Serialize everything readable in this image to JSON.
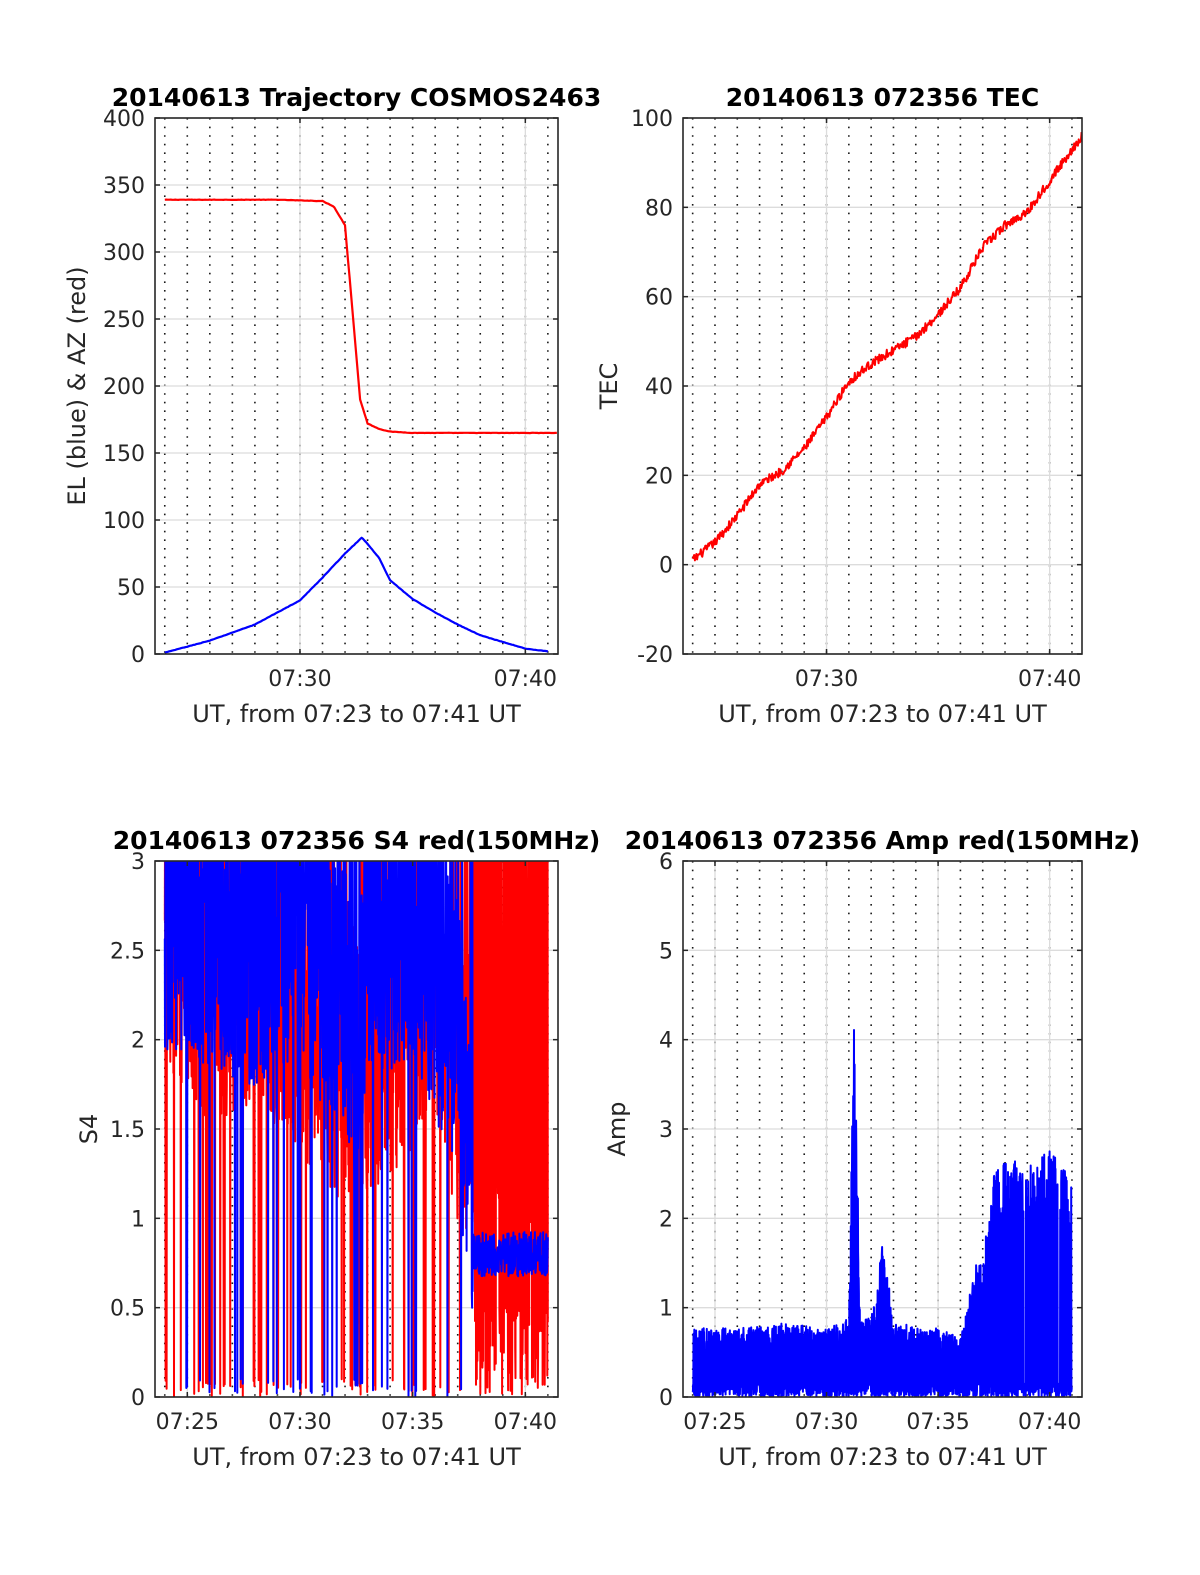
{
  "chart_data": [
    {
      "type": "line",
      "title": "20140613 Trajectory COSMOS2463",
      "xlabel": "UT, from 07:23 to 07:41 UT",
      "ylabel": "EL (blue) & AZ (red)",
      "xlim": [
        "07:23:34",
        "07:41:27"
      ],
      "ylim": [
        0,
        400
      ],
      "yticks": [
        0,
        50,
        100,
        150,
        200,
        250,
        300,
        350,
        400
      ],
      "xticks": [
        "07:30",
        "07:40"
      ],
      "grid": "on",
      "minor_x_grid": "dotted, 1-minute",
      "series": [
        {
          "color": "#ff0000",
          "x": [
            "07:24",
            "07:27",
            "07:29",
            "07:31",
            "07:31:30",
            "07:32",
            "07:32:20",
            "07:32:40",
            "07:33",
            "07:33:30",
            "07:34",
            "07:35",
            "07:37",
            "07:41:27"
          ],
          "values": [
            339,
            339,
            339,
            338,
            334,
            320,
            255,
            190,
            172,
            168,
            166,
            165,
            165,
            165
          ]
        },
        {
          "color": "#0000ff",
          "x": [
            "07:24",
            "07:26",
            "07:28",
            "07:30",
            "07:31",
            "07:32",
            "07:32:45",
            "07:33:30",
            "07:34",
            "07:35",
            "07:36",
            "07:37",
            "07:38",
            "07:39",
            "07:40",
            "07:41"
          ],
          "values": [
            1,
            10,
            22,
            40,
            57,
            75,
            87,
            72,
            55,
            41,
            31,
            22,
            14,
            9,
            4,
            2
          ]
        }
      ]
    },
    {
      "type": "line",
      "title": "20140613 072356 TEC",
      "xlabel": "UT, from 07:23 to 07:41 UT",
      "ylabel": "TEC",
      "xlim": [
        "07:23:34",
        "07:41:27"
      ],
      "ylim": [
        -20,
        100
      ],
      "yticks": [
        -20,
        0,
        20,
        40,
        60,
        80,
        100
      ],
      "xticks": [
        "07:30",
        "07:40"
      ],
      "grid": "on",
      "minor_x_grid": "dotted, 1-minute",
      "series": [
        {
          "color": "#ff0000",
          "x": [
            "07:24",
            "07:25",
            "07:26",
            "07:27",
            "07:28",
            "07:29",
            "07:30",
            "07:31",
            "07:32",
            "07:33",
            "07:34",
            "07:35",
            "07:36",
            "07:37",
            "07:38",
            "07:39",
            "07:40",
            "07:41:27"
          ],
          "values": [
            1,
            5,
            11,
            18,
            21,
            26,
            33,
            41,
            45,
            48,
            51,
            56,
            62,
            71,
            76,
            79,
            86,
            96
          ]
        }
      ]
    },
    {
      "type": "line",
      "title": "20140613 072356 S4 red(150MHz)",
      "xlabel": "UT, from 07:23 to 07:41 UT",
      "ylabel": "S4",
      "xlim": [
        "07:23:34",
        "07:41:27"
      ],
      "ylim": [
        0,
        3
      ],
      "yticks": [
        "0",
        "0.5",
        "1",
        "1.5",
        "2",
        "2.5",
        "3"
      ],
      "xticks": [
        "07:25",
        "07:30",
        "07:35",
        "07:40"
      ],
      "grid": "on",
      "minor_x_grid": "dotted, 1-minute",
      "series": [
        {
          "color": "#ff0000",
          "description_of_values": "noisy S4 values",
          "x": [
            "07:24",
            "07:26",
            "07:28",
            "07:30",
            "07:31",
            "07:32",
            "07:33",
            "07:34",
            "07:35",
            "07:36",
            "07:37",
            "07:38",
            "07:39",
            "07:40",
            "07:41"
          ],
          "values": [
            2.3,
            2.1,
            2.2,
            1.9,
            1.8,
            1.6,
            1.7,
            1.8,
            1.9,
            2.2,
            1.5,
            1.4,
            1.6,
            1.5,
            1.5
          ]
        },
        {
          "color": "#0000ff",
          "x": [
            "07:24",
            "07:26",
            "07:28",
            "07:30",
            "07:31",
            "07:32",
            "07:32:30",
            "07:33",
            "07:34",
            "07:35",
            "07:36",
            "07:37",
            "07:37:40",
            "07:38",
            "07:39",
            "07:40",
            "07:41"
          ],
          "values": [
            2.5,
            2.4,
            2.3,
            2.4,
            2.2,
            2.1,
            1.5,
            2.4,
            2.3,
            2.5,
            2.1,
            1.8,
            0.8,
            0.8,
            0.8,
            0.8,
            0.8
          ]
        }
      ]
    },
    {
      "type": "line",
      "title": "20140613 072356 Amp red(150MHz)",
      "xlabel": "UT, from 07:23 to 07:41 UT",
      "ylabel": "Amp",
      "xlim": [
        "07:23:34",
        "07:41:27"
      ],
      "ylim": [
        0,
        6
      ],
      "yticks": [
        0,
        1,
        2,
        3,
        4,
        5,
        6
      ],
      "xticks": [
        "07:25",
        "07:30",
        "07:35",
        "07:40"
      ],
      "grid": "on",
      "minor_x_grid": "dotted, 1-minute",
      "series": [
        {
          "color": "#0000ff",
          "x": [
            "07:24",
            "07:26",
            "07:28",
            "07:30",
            "07:31",
            "07:31:15",
            "07:31:30",
            "07:32",
            "07:32:30",
            "07:33",
            "07:34",
            "07:35",
            "07:36",
            "07:36:45",
            "07:37",
            "07:37:30",
            "07:38",
            "07:39",
            "07:40",
            "07:41"
          ],
          "values": [
            0.7,
            0.7,
            0.75,
            0.7,
            0.8,
            4.1,
            0.8,
            0.8,
            1.6,
            0.8,
            0.7,
            0.7,
            0.6,
            1.4,
            1.4,
            2.3,
            2.4,
            2.4,
            2.5,
            2.3
          ]
        }
      ]
    }
  ]
}
